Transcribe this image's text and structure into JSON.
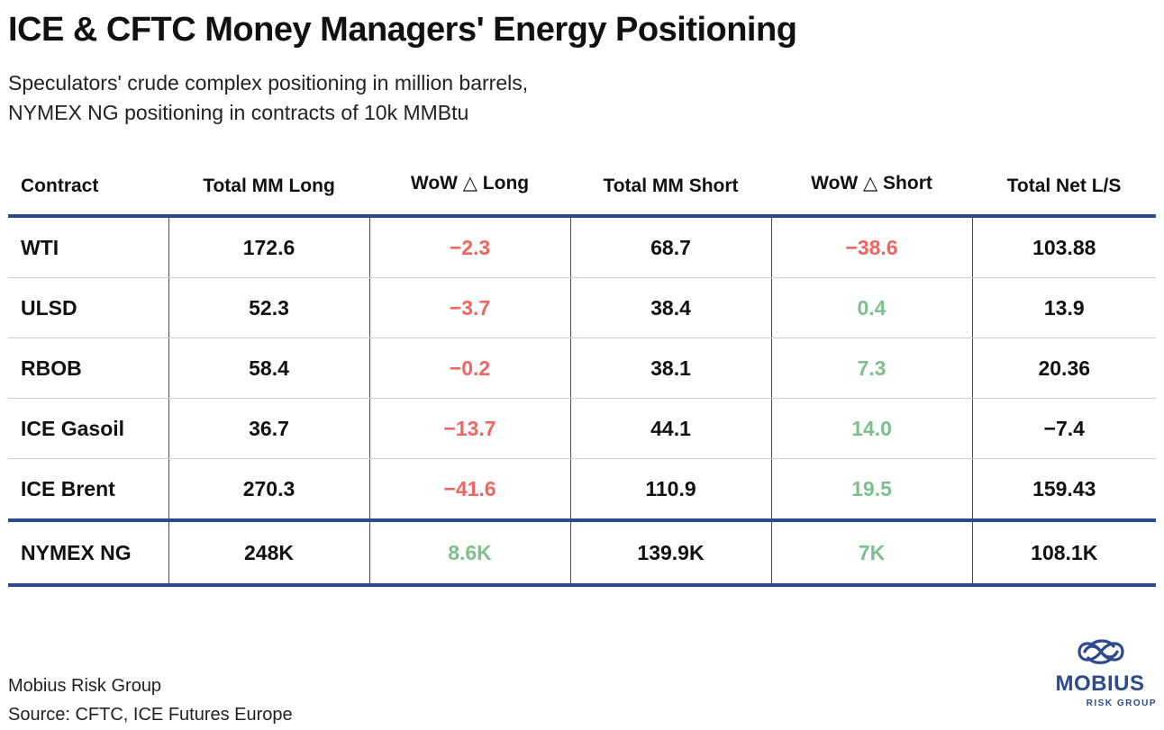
{
  "title": "ICE & CFTC Money Managers' Energy Positioning",
  "subtitle_lines": [
    "Speculators' crude complex positioning in million barrels,",
    "NYMEX NG positioning in contracts of 10k MMBtu"
  ],
  "colors": {
    "rule": "#2b4a8f",
    "negative": "#f06562",
    "positive": "#7fbf8e",
    "text": "#111111"
  },
  "chart_data": {
    "type": "table",
    "columns": [
      "Contract",
      "Total MM Long",
      "WoW △ Long",
      "Total MM Short",
      "WoW △ Short",
      "Total Net L/S"
    ],
    "rows": [
      {
        "contract": "WTI",
        "long": "172.6",
        "wow_long": "−2.3",
        "short": "68.7",
        "wow_short": "−38.6",
        "net": "103.88"
      },
      {
        "contract": "ULSD",
        "long": "52.3",
        "wow_long": "−3.7",
        "short": "38.4",
        "wow_short": "0.4",
        "net": "13.9"
      },
      {
        "contract": "RBOB",
        "long": "58.4",
        "wow_long": "−0.2",
        "short": "38.1",
        "wow_short": "7.3",
        "net": "20.36"
      },
      {
        "contract": "ICE Gasoil",
        "long": "36.7",
        "wow_long": "−13.7",
        "short": "44.1",
        "wow_short": "14.0",
        "net": "−7.4"
      },
      {
        "contract": "ICE Brent",
        "long": "270.3",
        "wow_long": "−41.6",
        "short": "110.9",
        "wow_short": "19.5",
        "net": "159.43"
      },
      {
        "contract": "NYMEX NG",
        "long": "248K",
        "wow_long": "8.6K",
        "short": "139.9K",
        "wow_short": "7K",
        "net": "108.1K"
      }
    ]
  },
  "footer": {
    "source_org": "Mobius Risk Group",
    "source_line": "Source: CFTC, ICE Futures Europe"
  },
  "logo": {
    "icon": "infinity-knot-icon",
    "wordmark": "MOBIUS",
    "tagline": "RISK GROUP"
  }
}
